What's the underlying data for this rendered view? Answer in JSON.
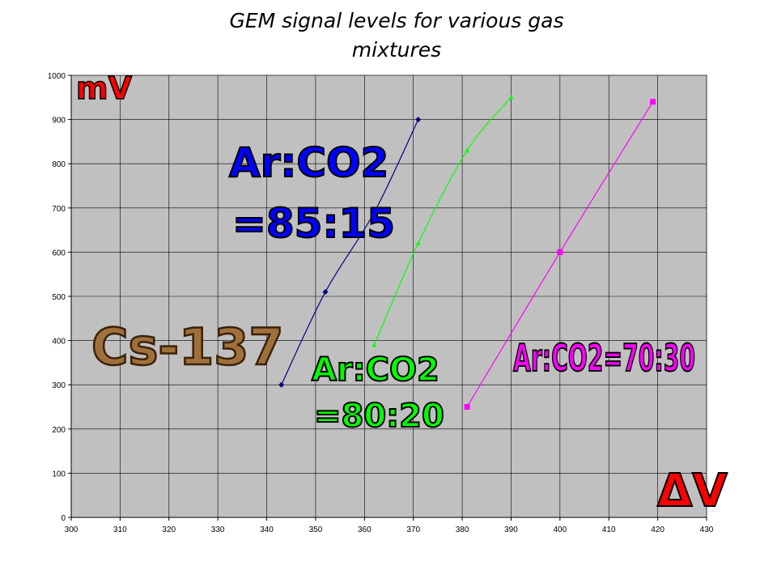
{
  "title_lines": [
    "GEM signal levels for various gas",
    "mixtures"
  ],
  "chart_data": {
    "type": "line",
    "title": "GEM signal levels for various gas mixtures",
    "xlabel": "ΔV",
    "ylabel": "mV",
    "xlim": [
      300,
      430
    ],
    "ylim": [
      0,
      1000
    ],
    "xticks": [
      "300",
      "310",
      "320",
      "330",
      "340",
      "350",
      "360",
      "370",
      "380",
      "390",
      "400",
      "410",
      "420",
      "430"
    ],
    "yticks": [
      "0",
      "100",
      "200",
      "300",
      "400",
      "500",
      "600",
      "700",
      "800",
      "900",
      "1000"
    ],
    "grid": true,
    "plot_background": "#c0c0c0",
    "series": [
      {
        "name": "Ar:CO2 =85:15",
        "color": "#000080",
        "marker": "diamond",
        "points": [
          [
            343,
            300
          ],
          [
            352,
            510
          ],
          [
            362,
            690
          ],
          [
            371,
            900
          ]
        ]
      },
      {
        "name": "Ar:CO2 =80:20",
        "color": "#00ff00",
        "marker": "triangle",
        "points": [
          [
            362,
            390
          ],
          [
            371,
            620
          ],
          [
            381,
            830
          ],
          [
            390,
            950
          ]
        ]
      },
      {
        "name": "Ar:CO2=70:30",
        "color": "#ff00ff",
        "marker": "square",
        "points": [
          [
            381,
            250
          ],
          [
            400,
            600
          ],
          [
            419,
            940
          ]
        ]
      }
    ],
    "annotations": {
      "source": "Cs-137",
      "unit_y": "mV",
      "unit_x": "ΔV",
      "label_85_15_line1": "Ar:CO2",
      "label_85_15_line2": "=85:15",
      "label_80_20_line1": "Ar:CO2",
      "label_80_20_line2": "=80:20",
      "label_70_30": "Ar:CO2=70:30"
    }
  }
}
